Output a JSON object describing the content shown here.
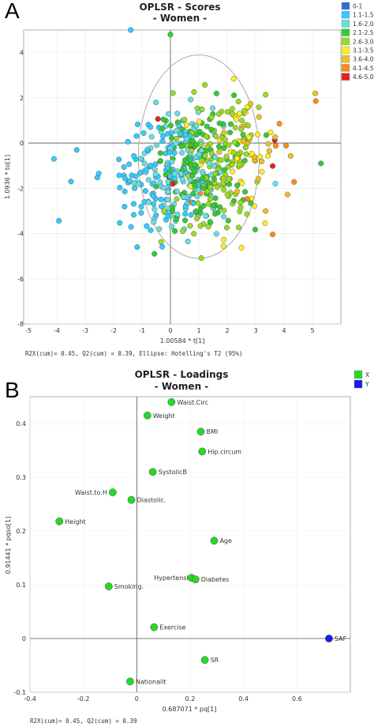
{
  "panels": {
    "a": "A",
    "b": "B"
  },
  "chart_data": [
    {
      "type": "scatter",
      "title": "OPLSR - Scores",
      "subtitle": "- Women -",
      "xlabel": "1.00584 * t[1]",
      "ylabel": "1.0936 * to[1]",
      "xlim": [
        -5,
        6
      ],
      "ylim": [
        -8,
        5
      ],
      "xticks": [
        -5,
        -4,
        -3,
        -2,
        -1,
        0,
        1,
        2,
        3,
        4,
        5
      ],
      "yticks": [
        -8,
        -6,
        -4,
        -2,
        0,
        2,
        4
      ],
      "footnote": "R2X(cum)= 0.45, Q2(cum) = 0.39, Ellipse: Hotelling's T2 (95%)",
      "ellipse": {
        "cx": 1.0,
        "cy": -0.6,
        "rx": 5.0,
        "ry": 4.5
      },
      "legend": [
        {
          "label": "0-1",
          "color": "#2f6fd8"
        },
        {
          "label": "1.1-1.5",
          "color": "#33ccff"
        },
        {
          "label": "1.6-2.0",
          "color": "#66e0e0"
        },
        {
          "label": "2.1-2.5",
          "color": "#33cc33"
        },
        {
          "label": "2.6-3.0",
          "color": "#99dd22"
        },
        {
          "label": "3.1-3.5",
          "color": "#ffee22"
        },
        {
          "label": "3.6-4.0",
          "color": "#f0c020"
        },
        {
          "label": "4.1-4.5",
          "color": "#ff8c1a"
        },
        {
          "label": "4.6-5.0",
          "color": "#e82020"
        }
      ],
      "series_generation": {
        "n": 560,
        "center": [
          0.9,
          -1.0
        ],
        "spread": [
          1.2,
          1.45
        ]
      }
    },
    {
      "type": "scatter",
      "title": "OPLSR - Loadings",
      "subtitle": "- Women -",
      "xlabel": "0.687071 * pq[1]",
      "ylabel": "0.91441 * pqso[1]",
      "xlim": [
        -0.4,
        0.8
      ],
      "ylim": [
        -0.1,
        0.45
      ],
      "xticks": [
        -0.4,
        -0.2,
        0,
        0.2,
        0.4,
        0.6
      ],
      "yticks": [
        -0.1,
        0,
        0.1,
        0.2,
        0.3,
        0.4
      ],
      "footnote": "R2X(cum)= 0.45, Q2(cum) = 0.39",
      "legend": [
        {
          "label": "X",
          "color": "#22dd22"
        },
        {
          "label": "Y",
          "color": "#1a1aee"
        }
      ],
      "points": [
        {
          "label": "Waist.Circ",
          "x": 0.13,
          "y": 0.44,
          "group": "X"
        },
        {
          "label": "Weight",
          "x": 0.04,
          "y": 0.415,
          "group": "X"
        },
        {
          "label": "BMI",
          "x": 0.24,
          "y": 0.385,
          "group": "X"
        },
        {
          "label": "Hip.circum",
          "x": 0.245,
          "y": 0.348,
          "group": "X"
        },
        {
          "label": "SystolicB",
          "x": 0.06,
          "y": 0.31,
          "group": "X"
        },
        {
          "label": "Waist.to.H",
          "x": -0.09,
          "y": 0.272,
          "group": "X"
        },
        {
          "label": "Diastolic.",
          "x": -0.02,
          "y": 0.258,
          "group": "X"
        },
        {
          "label": "Height",
          "x": -0.29,
          "y": 0.218,
          "group": "X"
        },
        {
          "label": "Age",
          "x": 0.29,
          "y": 0.182,
          "group": "X"
        },
        {
          "label": "Hypertensi",
          "x": 0.205,
          "y": 0.113,
          "group": "X"
        },
        {
          "label": "Diabetes",
          "x": 0.22,
          "y": 0.11,
          "group": "X"
        },
        {
          "label": "Smoking.",
          "x": -0.105,
          "y": 0.097,
          "group": "X"
        },
        {
          "label": "Exercise",
          "x": 0.065,
          "y": 0.021,
          "group": "X"
        },
        {
          "label": "SAF",
          "x": 0.72,
          "y": 0.0,
          "group": "Y"
        },
        {
          "label": "SR",
          "x": 0.255,
          "y": -0.04,
          "group": "X"
        },
        {
          "label": "Nationalit",
          "x": -0.025,
          "y": -0.08,
          "group": "X"
        }
      ]
    }
  ]
}
